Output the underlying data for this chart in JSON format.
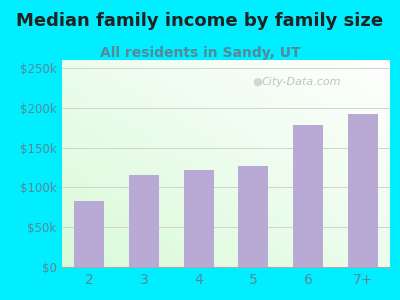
{
  "title": "Median family income by family size",
  "subtitle": "All residents in Sandy, UT",
  "categories": [
    "2",
    "3",
    "4",
    "5",
    "6",
    "7+"
  ],
  "values": [
    83000,
    115000,
    122000,
    127000,
    178000,
    192000
  ],
  "bar_color": "#b8aad4",
  "background_outer": "#00eeff",
  "title_color": "#222222",
  "subtitle_color": "#558899",
  "tick_color": "#558899",
  "ylim": [
    0,
    260000
  ],
  "yticks": [
    0,
    50000,
    100000,
    150000,
    200000,
    250000
  ],
  "watermark": "City-Data.com",
  "title_fontsize": 13,
  "subtitle_fontsize": 10
}
